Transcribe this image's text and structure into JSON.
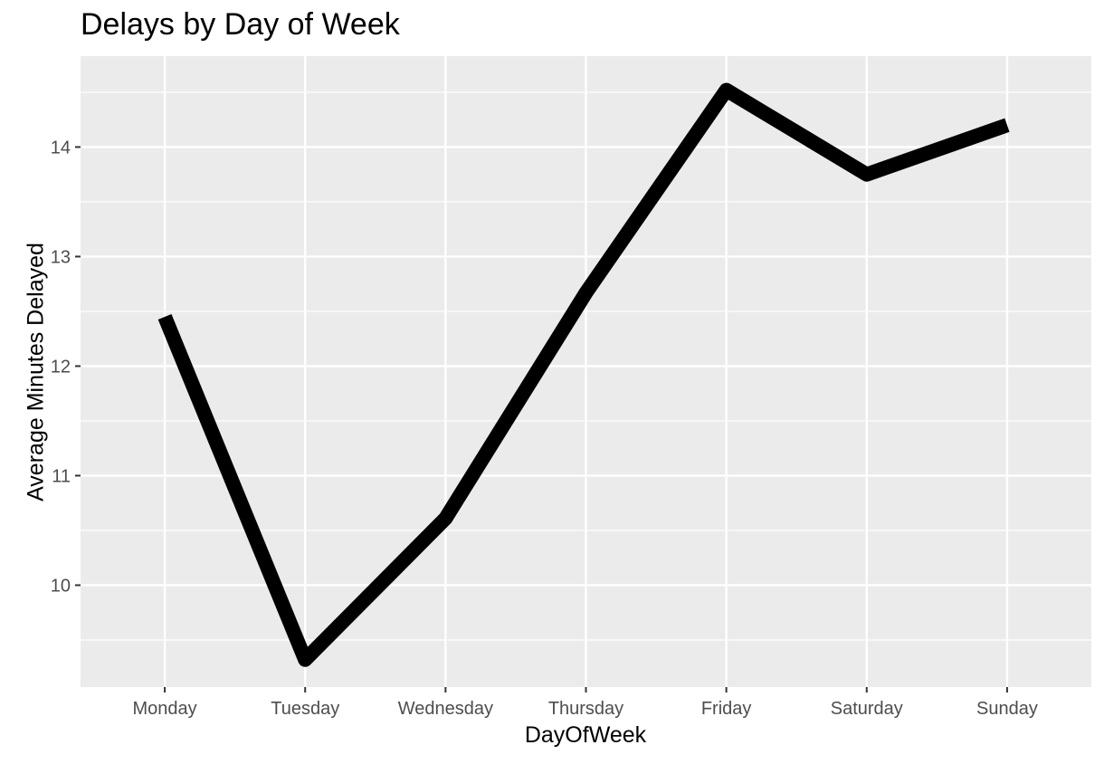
{
  "chart_data": {
    "type": "line",
    "title": "Delays by Day of Week",
    "xlabel": "DayOfWeek",
    "ylabel": "Average Minutes Delayed",
    "categories": [
      "Monday",
      "Tuesday",
      "Wednesday",
      "Thursday",
      "Friday",
      "Saturday",
      "Sunday"
    ],
    "values": [
      12.45,
      9.32,
      10.61,
      12.67,
      14.52,
      13.75,
      14.2
    ],
    "yticks": [
      10,
      11,
      12,
      13,
      14
    ],
    "ylim": [
      9.07,
      14.83
    ],
    "grid": true,
    "legend": "none",
    "colors": {
      "panel": "#ebebeb",
      "grid": "#ffffff",
      "line": "#000000",
      "tick_text": "#4d4d4d",
      "tick_mark": "#333333"
    }
  }
}
